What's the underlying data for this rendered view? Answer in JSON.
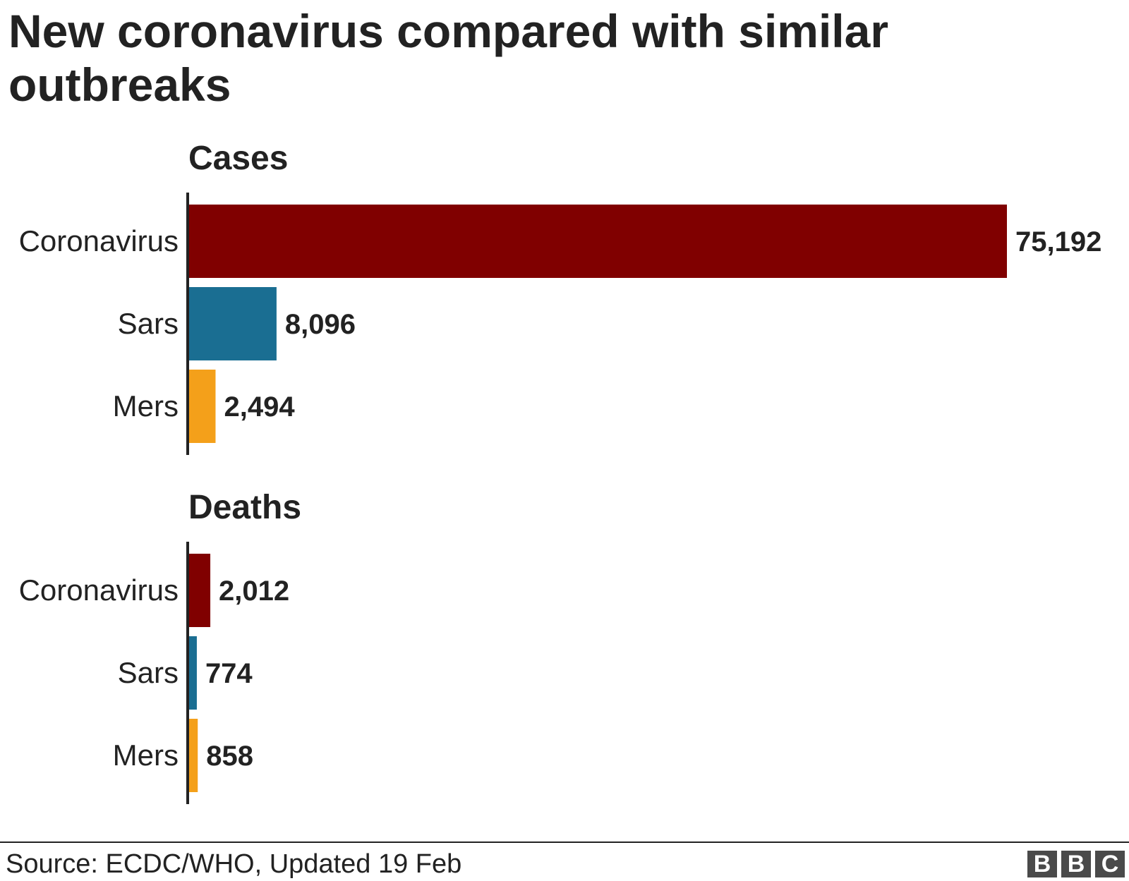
{
  "title": "New coronavirus compared with similar outbreaks",
  "source": "Source: ECDC/WHO, Updated 19 Feb",
  "logo": [
    "B",
    "B",
    "C"
  ],
  "chart_data": [
    {
      "type": "bar",
      "orientation": "horizontal",
      "title": "Cases",
      "categories": [
        "Coronavirus",
        "Sars",
        "Mers"
      ],
      "values": [
        75192,
        8096,
        2494
      ],
      "labels": [
        "75,192",
        "8,096",
        "2,494"
      ],
      "colors": [
        "#800000",
        "#1a6e92",
        "#f4a01a"
      ],
      "xlim": [
        0,
        75192
      ]
    },
    {
      "type": "bar",
      "orientation": "horizontal",
      "title": "Deaths",
      "categories": [
        "Coronavirus",
        "Sars",
        "Mers"
      ],
      "values": [
        2012,
        774,
        858
      ],
      "labels": [
        "2,012",
        "774",
        "858"
      ],
      "colors": [
        "#800000",
        "#1a6e92",
        "#f4a01a"
      ],
      "xlim": [
        0,
        75192
      ]
    }
  ]
}
